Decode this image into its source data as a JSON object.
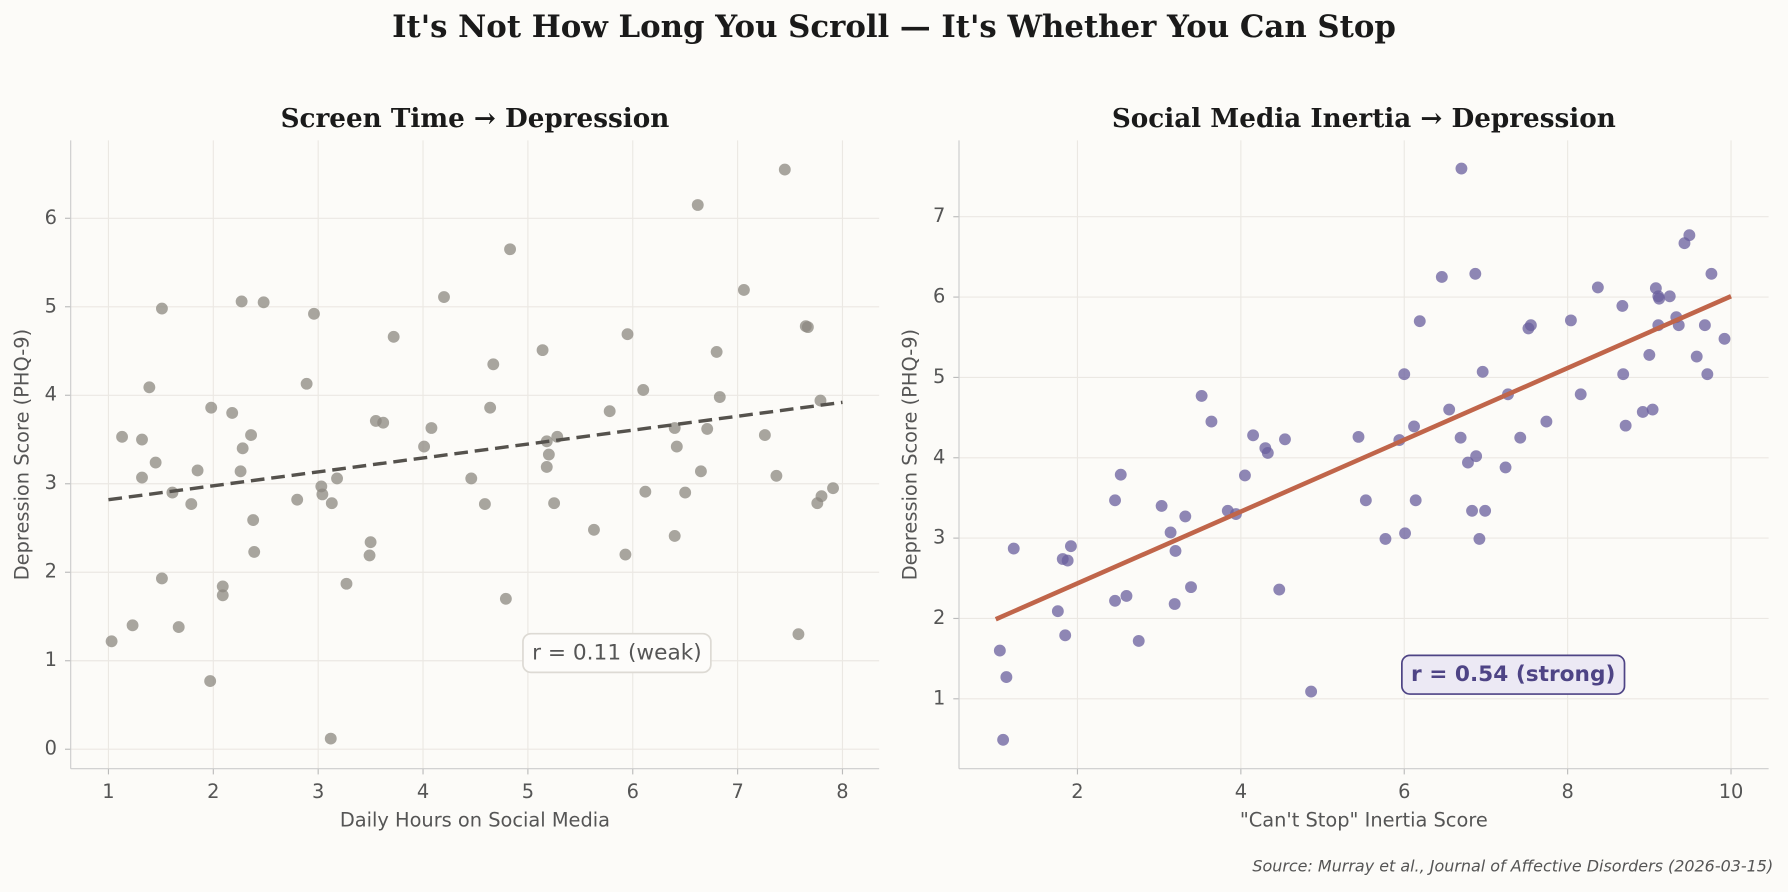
{
  "title": "It's Not How Long You Scroll — It's Whether You Can Stop",
  "source": "Source: Murray et al., Journal of Affective Disorders (2026-03-15)",
  "chart_data": [
    {
      "type": "scatter",
      "title": "Screen Time → Depression",
      "x_label": "Daily Hours on Social Media",
      "y_label": "Depression Score (PHQ-9)",
      "color": "#8c8880",
      "x": [
        1.03,
        1.13,
        1.23,
        1.32,
        1.32,
        1.39,
        1.45,
        1.51,
        1.51,
        1.61,
        1.67,
        1.79,
        1.85,
        1.97,
        1.98,
        2.09,
        2.09,
        2.18,
        2.26,
        2.27,
        2.28,
        2.36,
        2.38,
        2.39,
        2.48,
        2.8,
        2.89,
        2.96,
        3.03,
        3.04,
        3.12,
        3.13,
        3.18,
        3.27,
        3.49,
        3.5,
        3.55,
        3.62,
        3.72,
        4.01,
        4.08,
        4.2,
        4.46,
        4.59,
        4.64,
        4.67,
        4.79,
        4.83,
        5.14,
        5.18,
        5.18,
        5.2,
        5.25,
        5.28,
        5.63,
        5.78,
        5.93,
        5.95,
        6.1,
        6.12,
        6.4,
        6.4,
        6.42,
        6.5,
        6.62,
        6.65,
        6.71,
        6.8,
        6.83,
        7.06,
        7.26,
        7.37,
        7.45,
        7.58,
        7.65,
        7.67,
        7.76,
        7.8,
        7.79,
        7.91
      ],
      "values": [
        1.22,
        3.53,
        1.4,
        3.5,
        3.07,
        4.09,
        3.24,
        4.98,
        1.93,
        2.9,
        1.38,
        2.77,
        3.15,
        0.77,
        3.86,
        1.84,
        1.74,
        3.8,
        3.14,
        5.06,
        3.4,
        3.55,
        2.59,
        2.23,
        5.05,
        2.82,
        4.13,
        4.92,
        2.97,
        2.88,
        0.12,
        2.78,
        3.06,
        1.87,
        2.19,
        2.34,
        3.71,
        3.69,
        4.66,
        3.42,
        3.63,
        5.11,
        3.06,
        2.77,
        3.86,
        4.35,
        1.7,
        5.65,
        4.51,
        3.48,
        3.19,
        3.33,
        2.78,
        3.53,
        2.48,
        3.82,
        2.2,
        4.69,
        4.06,
        2.91,
        2.41,
        3.63,
        3.42,
        2.9,
        6.15,
        3.14,
        3.62,
        4.49,
        3.98,
        5.19,
        3.55,
        3.09,
        6.55,
        1.3,
        4.78,
        4.77,
        2.78,
        2.86,
        3.94,
        2.95
      ],
      "trend_line": {
        "x": [
          1,
          8
        ],
        "values": [
          2.82,
          3.92
        ],
        "color": "#55524d",
        "style": "dashed"
      },
      "annotation": {
        "text": "r = 0.11 (weak)",
        "color": "#555555",
        "fill": "#fdfcfa",
        "border": "#dddad4",
        "bold": false
      },
      "xlim": [
        0.64,
        8.35
      ],
      "ylim": [
        -0.22,
        6.88
      ],
      "xticks": [
        1,
        2,
        3,
        4,
        5,
        6,
        7,
        8
      ],
      "yticks": [
        0,
        1,
        2,
        3,
        4,
        5,
        6
      ],
      "grid": true
    },
    {
      "type": "scatter",
      "title": "Social Media Inertia → Depression",
      "x_label": "\"Can't Stop\" Inertia Score",
      "y_label": "Depression Score (PHQ-9)",
      "color": "#6a5f9e",
      "x": [
        1.05,
        1.13,
        1.09,
        1.22,
        1.76,
        1.82,
        1.88,
        1.85,
        1.92,
        2.46,
        2.53,
        2.46,
        2.6,
        2.75,
        3.03,
        3.14,
        3.2,
        3.19,
        3.32,
        3.39,
        3.52,
        3.64,
        3.84,
        3.94,
        4.05,
        4.15,
        4.3,
        4.33,
        4.47,
        4.54,
        4.86,
        5.44,
        5.53,
        5.77,
        5.94,
        6.0,
        6.01,
        6.12,
        6.14,
        6.19,
        6.46,
        6.55,
        6.69,
        6.7,
        6.78,
        6.83,
        6.87,
        6.88,
        6.92,
        6.96,
        6.99,
        7.24,
        7.27,
        7.42,
        7.52,
        7.55,
        7.74,
        8.04,
        8.16,
        8.37,
        8.67,
        8.68,
        8.71,
        8.92,
        9.0,
        9.04,
        9.08,
        9.11,
        9.12,
        9.11,
        9.25,
        9.33,
        9.36,
        9.43,
        9.49,
        9.58,
        9.68,
        9.71,
        9.76,
        9.92
      ],
      "values": [
        1.6,
        1.27,
        0.49,
        2.87,
        2.09,
        2.74,
        2.72,
        1.79,
        2.9,
        3.47,
        3.79,
        2.22,
        2.28,
        1.72,
        3.4,
        3.07,
        2.84,
        2.18,
        3.27,
        2.39,
        4.77,
        4.45,
        3.34,
        3.3,
        3.78,
        4.28,
        4.12,
        4.06,
        2.36,
        4.23,
        1.09,
        4.26,
        3.47,
        2.99,
        4.22,
        5.04,
        3.06,
        4.39,
        3.47,
        5.7,
        6.25,
        4.6,
        4.25,
        7.6,
        3.94,
        3.34,
        6.29,
        4.02,
        2.99,
        5.07,
        3.34,
        3.88,
        4.79,
        4.25,
        5.61,
        5.65,
        4.45,
        5.71,
        4.79,
        6.12,
        5.89,
        5.04,
        4.4,
        4.57,
        5.28,
        4.6,
        6.11,
        6.01,
        5.98,
        5.65,
        6.01,
        5.75,
        5.65,
        6.67,
        6.77,
        5.26,
        5.65,
        5.04,
        6.29,
        5.48
      ],
      "trend_line": {
        "x": [
          1,
          10
        ],
        "values": [
          1.99,
          6.01
        ],
        "color": "#c0654a",
        "style": "solid"
      },
      "annotation": {
        "text": "r = 0.54 (strong)",
        "color": "#4e4485",
        "fill": "#ecE9f4",
        "border": "#4e4485",
        "bold": true
      },
      "xlim": [
        0.55,
        10.46
      ],
      "ylim": [
        0.13,
        7.95
      ],
      "xticks": [
        2,
        4,
        6,
        8,
        10
      ],
      "yticks": [
        1,
        2,
        3,
        4,
        5,
        6,
        7
      ],
      "grid": true
    }
  ]
}
